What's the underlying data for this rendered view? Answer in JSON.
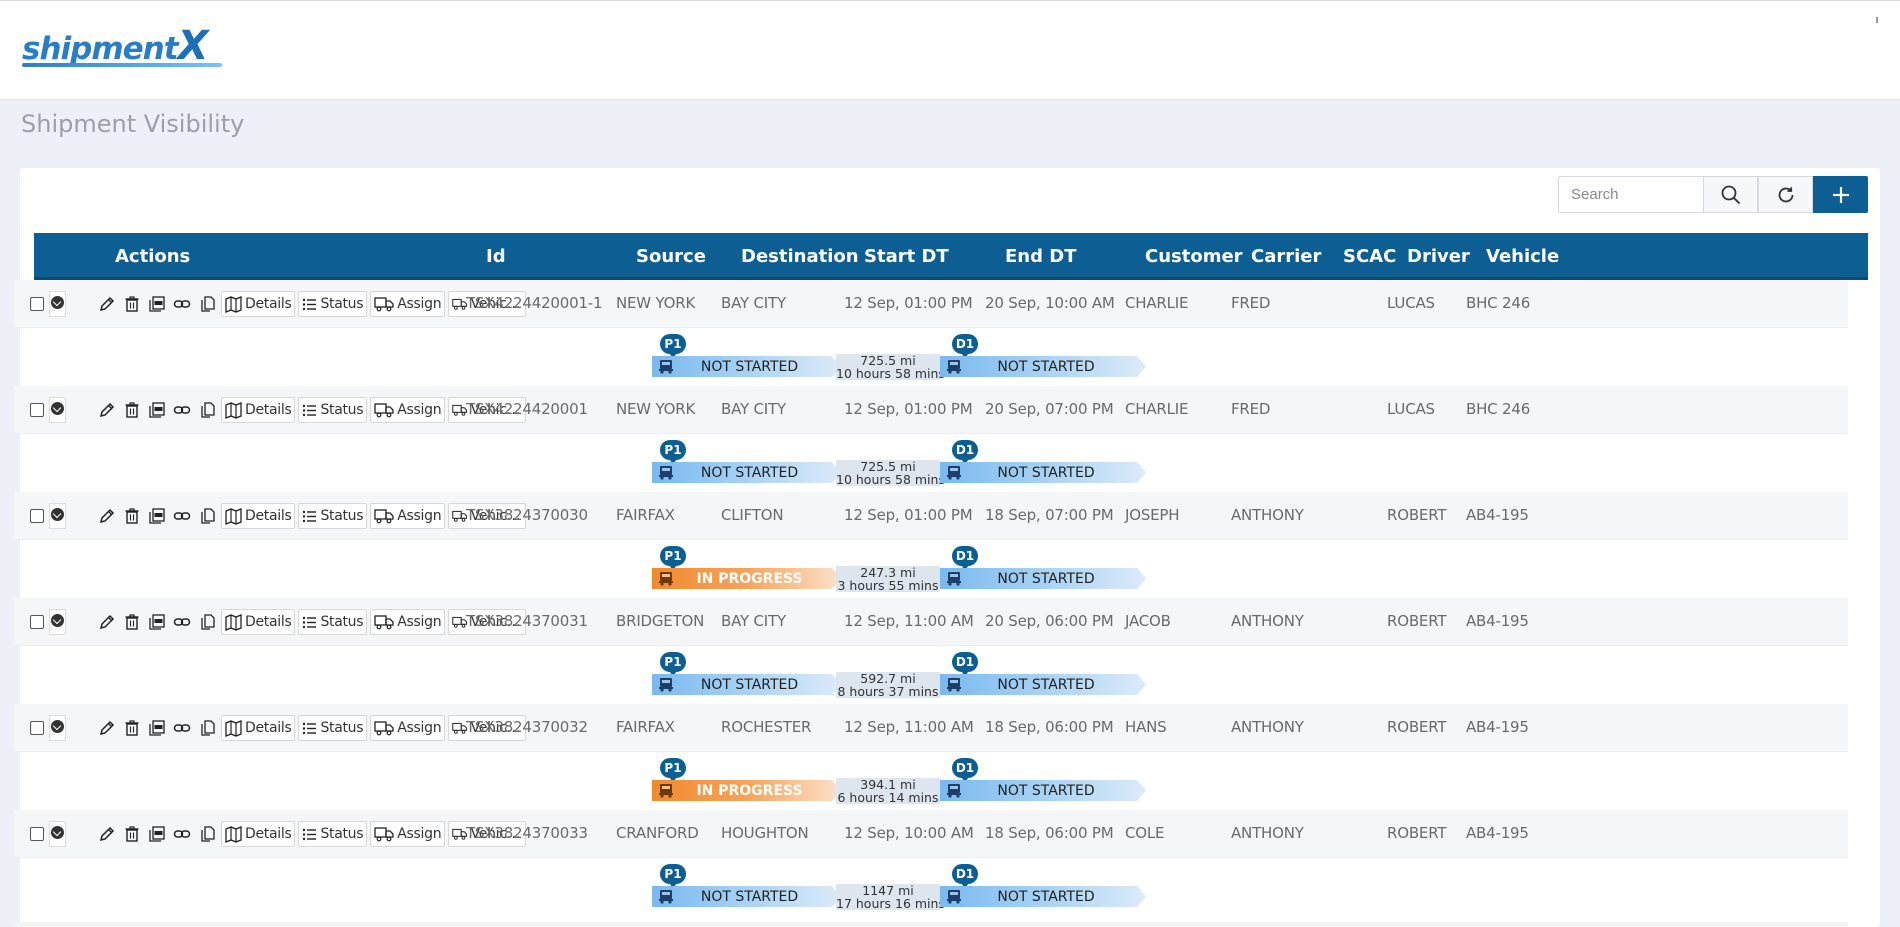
{
  "app": {
    "logo_text": "shipment",
    "logo_x": "X",
    "page_title": "Shipment Visibility"
  },
  "toolbar": {
    "search_placeholder": "Search"
  },
  "columns": {
    "actions": "Actions",
    "id": "Id",
    "source": "Source",
    "destination": "Destination",
    "start_dt": "Start DT",
    "end_dt": "End DT",
    "customer": "Customer",
    "carrier": "Carrier",
    "scac": "SCAC",
    "driver": "Driver",
    "vehicle": "Vehicle"
  },
  "action_labels": {
    "details": "Details",
    "status": "Status",
    "assign": "Assign",
    "vehicles": "Vehicles..."
  },
  "stop_badges": {
    "pickup": "P1",
    "delivery": "D1"
  },
  "colors": {
    "header": "#0d5e93",
    "not_started": "#7ab9ee",
    "in_progress": "#f28a2e"
  },
  "rows": [
    {
      "id": "TSX4224420001-1",
      "source": "NEW YORK",
      "destination": "BAY CITY",
      "start": "12 Sep, 01:00 PM",
      "end": "20 Sep, 10:00 AM",
      "customer": "CHARLIE",
      "carrier": "FRED",
      "scac": "",
      "driver": "LUCAS",
      "vehicle": "BHC 246",
      "leg1_status": "NOT STARTED",
      "leg1_state": "ns",
      "distance": "725.5 mi",
      "duration": "10 hours 58 mins",
      "leg2_status": "NOT STARTED"
    },
    {
      "id": "TSX4224420001",
      "source": "NEW YORK",
      "destination": "BAY CITY",
      "start": "12 Sep, 01:00 PM",
      "end": "20 Sep, 07:00 PM",
      "customer": "CHARLIE",
      "carrier": "FRED",
      "scac": "",
      "driver": "LUCAS",
      "vehicle": "BHC 246",
      "leg1_status": "NOT STARTED",
      "leg1_state": "ns",
      "distance": "725.5 mi",
      "duration": "10 hours 58 mins",
      "leg2_status": "NOT STARTED"
    },
    {
      "id": "TSX3824370030",
      "source": "FAIRFAX",
      "destination": "CLIFTON",
      "start": "12 Sep, 01:00 PM",
      "end": "18 Sep, 07:00 PM",
      "customer": "JOSEPH",
      "carrier": "ANTHONY",
      "scac": "",
      "driver": "ROBERT",
      "vehicle": "AB4-195",
      "leg1_status": "IN PROGRESS",
      "leg1_state": "ip",
      "distance": "247.3 mi",
      "duration": "3 hours 55 mins",
      "leg2_status": "NOT STARTED"
    },
    {
      "id": "TSX3824370031",
      "source": "BRIDGETON",
      "destination": "BAY CITY",
      "start": "12 Sep, 11:00 AM",
      "end": "20 Sep, 06:00 PM",
      "customer": "JACOB",
      "carrier": "ANTHONY",
      "scac": "",
      "driver": "ROBERT",
      "vehicle": "AB4-195",
      "leg1_status": "NOT STARTED",
      "leg1_state": "ns",
      "distance": "592.7 mi",
      "duration": "8 hours 37 mins",
      "leg2_status": "NOT STARTED"
    },
    {
      "id": "TSX3824370032",
      "source": "FAIRFAX",
      "destination": "ROCHESTER",
      "start": "12 Sep, 11:00 AM",
      "end": "18 Sep, 06:00 PM",
      "customer": "HANS",
      "carrier": "ANTHONY",
      "scac": "",
      "driver": "ROBERT",
      "vehicle": "AB4-195",
      "leg1_status": "IN PROGRESS",
      "leg1_state": "ip",
      "distance": "394.1 mi",
      "duration": "6 hours 14 mins",
      "leg2_status": "NOT STARTED"
    },
    {
      "id": "TSX3824370033",
      "source": "CRANFORD",
      "destination": "HOUGHTON",
      "start": "12 Sep, 10:00 AM",
      "end": "18 Sep, 06:00 PM",
      "customer": "COLE",
      "carrier": "ANTHONY",
      "scac": "",
      "driver": "ROBERT",
      "vehicle": "AB4-195",
      "leg1_status": "NOT STARTED",
      "leg1_state": "ns",
      "distance": "1147 mi",
      "duration": "17 hours 16 mins",
      "leg2_status": "NOT STARTED"
    }
  ]
}
